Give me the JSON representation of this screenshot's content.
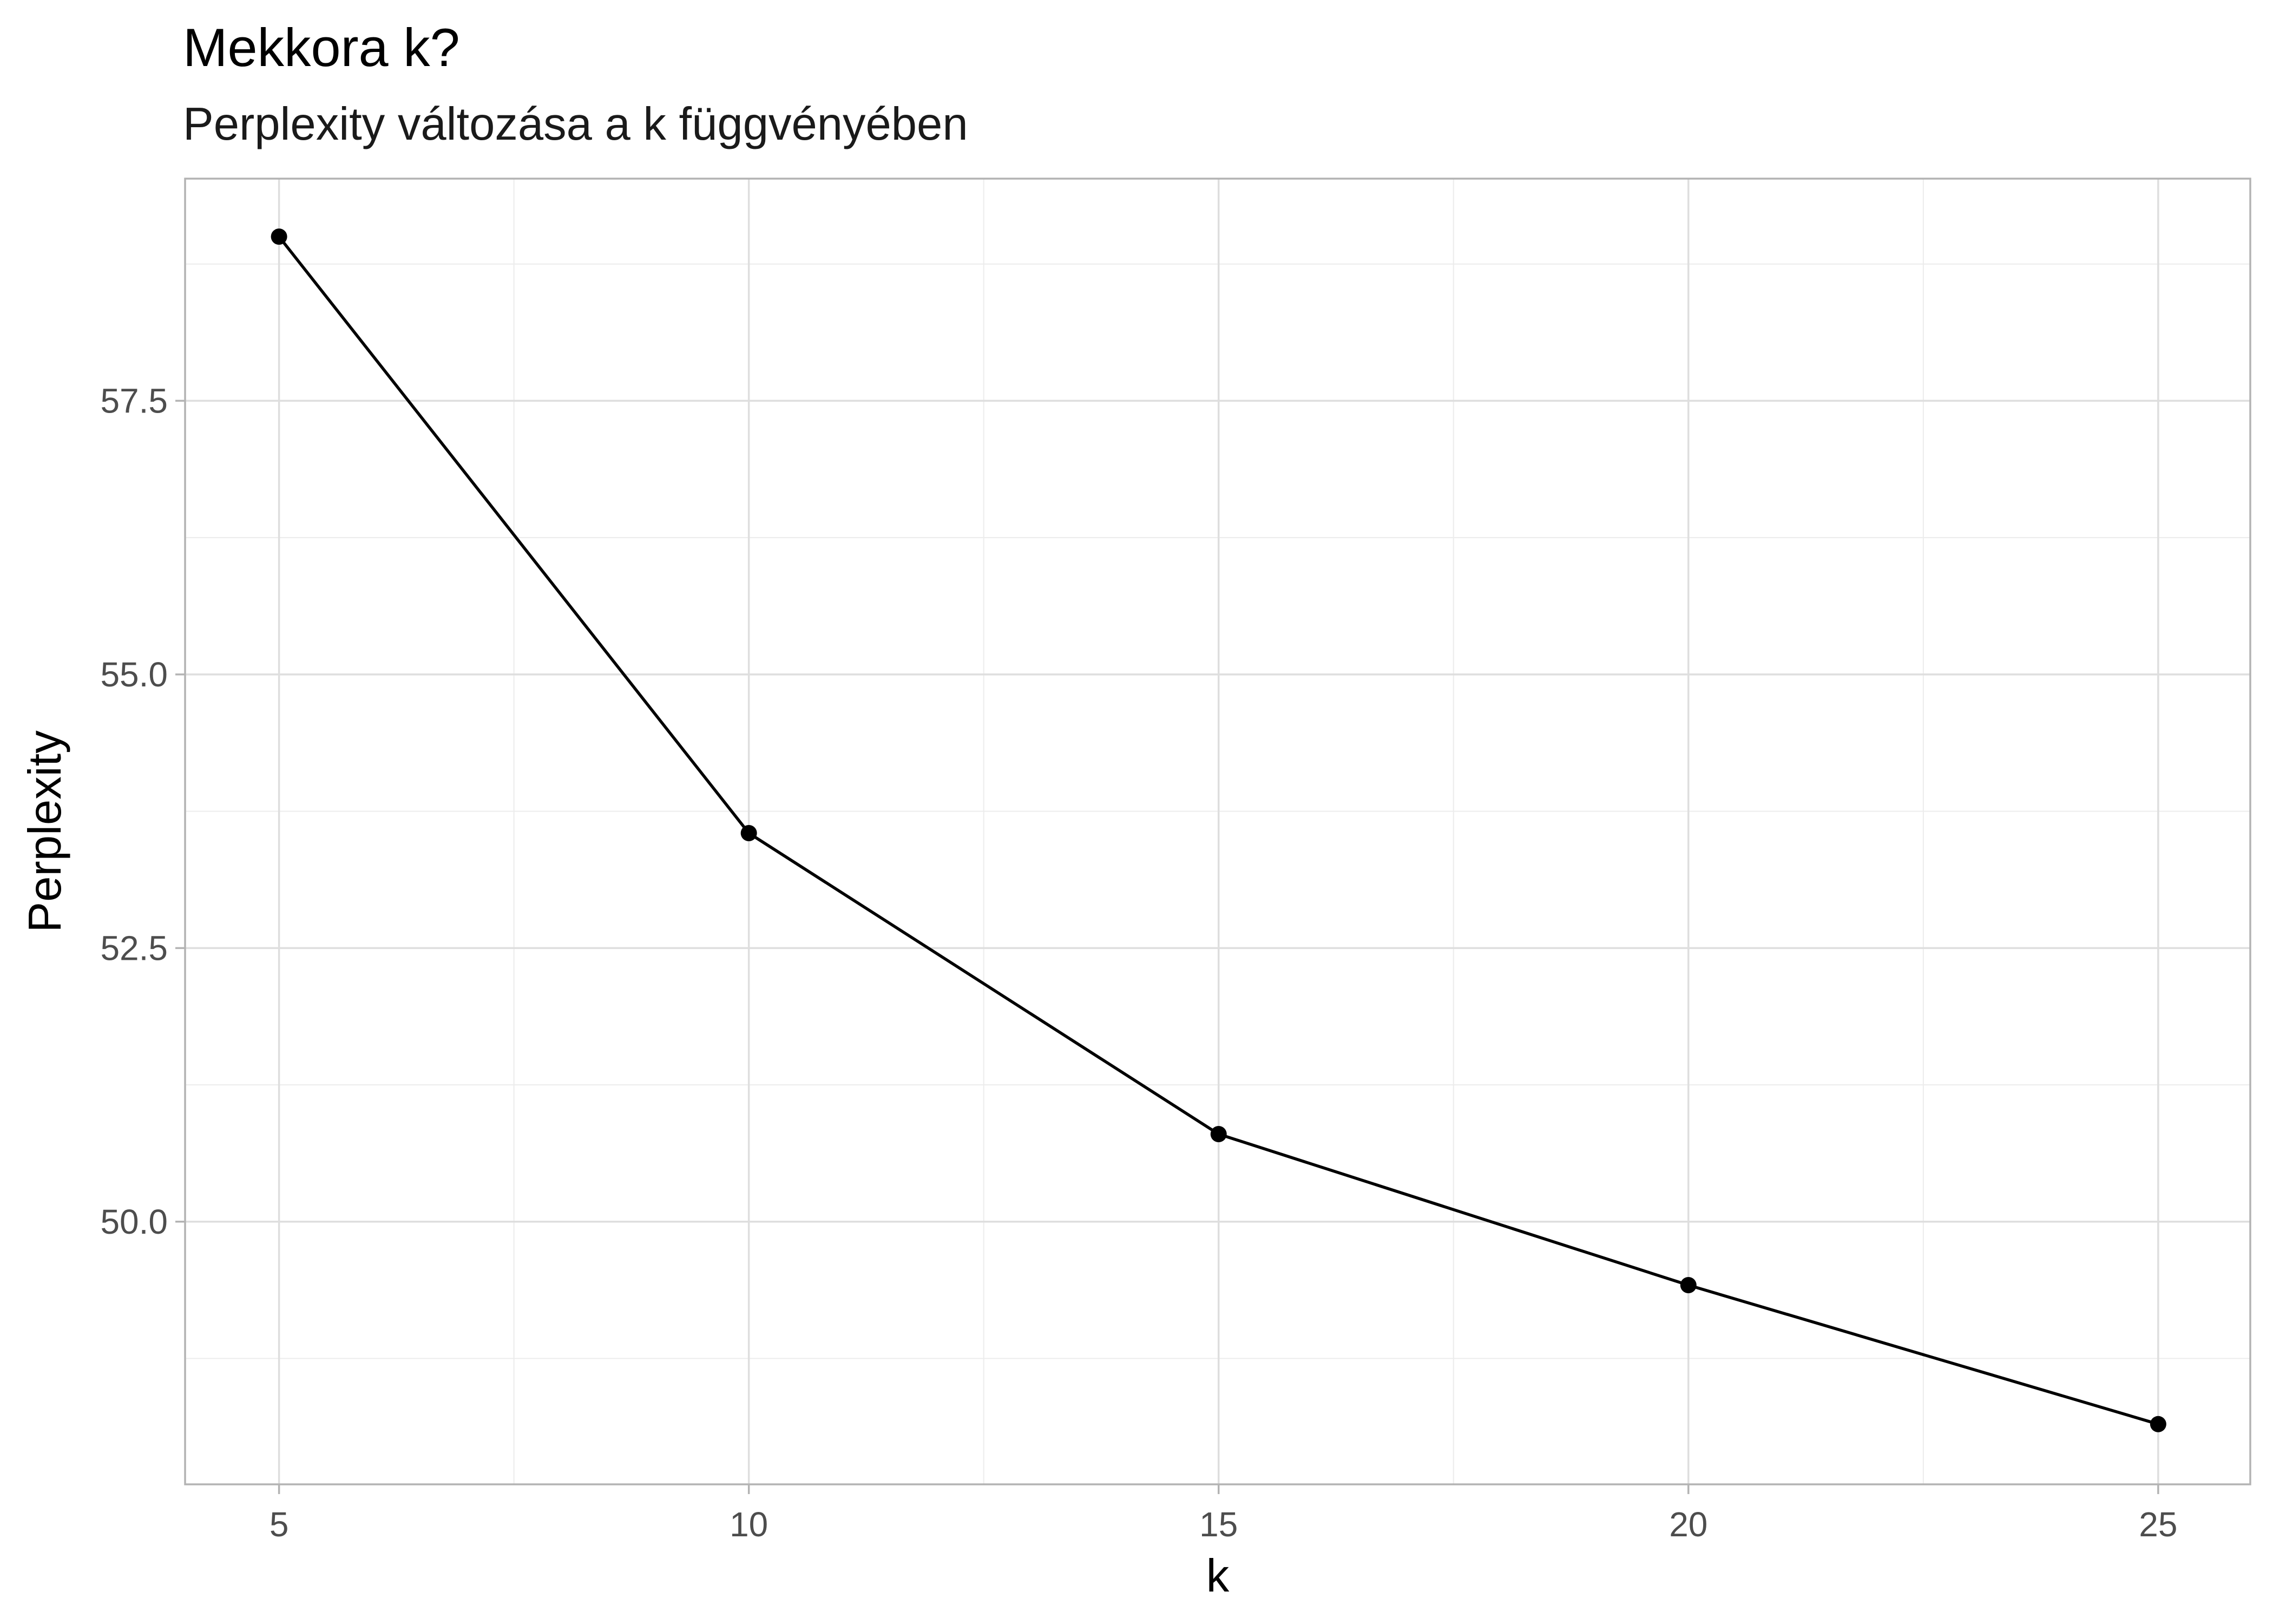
{
  "chart_data": {
    "type": "line",
    "title": "Mekkora k?",
    "subtitle": "Perplexity változása a k függvényében",
    "xlabel": "k",
    "ylabel": "Perplexity",
    "x": [
      5,
      10,
      15,
      20,
      25
    ],
    "series": [
      {
        "values": [
          59.0,
          53.55,
          50.8,
          49.42,
          48.15
        ]
      }
    ],
    "xlim": [
      4,
      25.98
    ],
    "ylim": [
      47.6,
      59.53
    ],
    "x_ticks": [
      5,
      10,
      15,
      20,
      25
    ],
    "x_tick_labels": [
      "5",
      "10",
      "15",
      "20",
      "25"
    ],
    "x_minor_ticks": [
      7.5,
      12.5,
      17.5,
      22.5
    ],
    "y_ticks": [
      50,
      52.5,
      55,
      57.5
    ],
    "y_tick_labels": [
      "50.0",
      "52.5",
      "55.0",
      "57.5"
    ],
    "y_minor_ticks": [
      48.75,
      51.25,
      53.75,
      56.25,
      58.75
    ],
    "grid": true,
    "legend": "none",
    "colors": {
      "line": "#000000",
      "point": "#000000",
      "grid": "#dedede",
      "border": "#b3b3b3"
    }
  }
}
